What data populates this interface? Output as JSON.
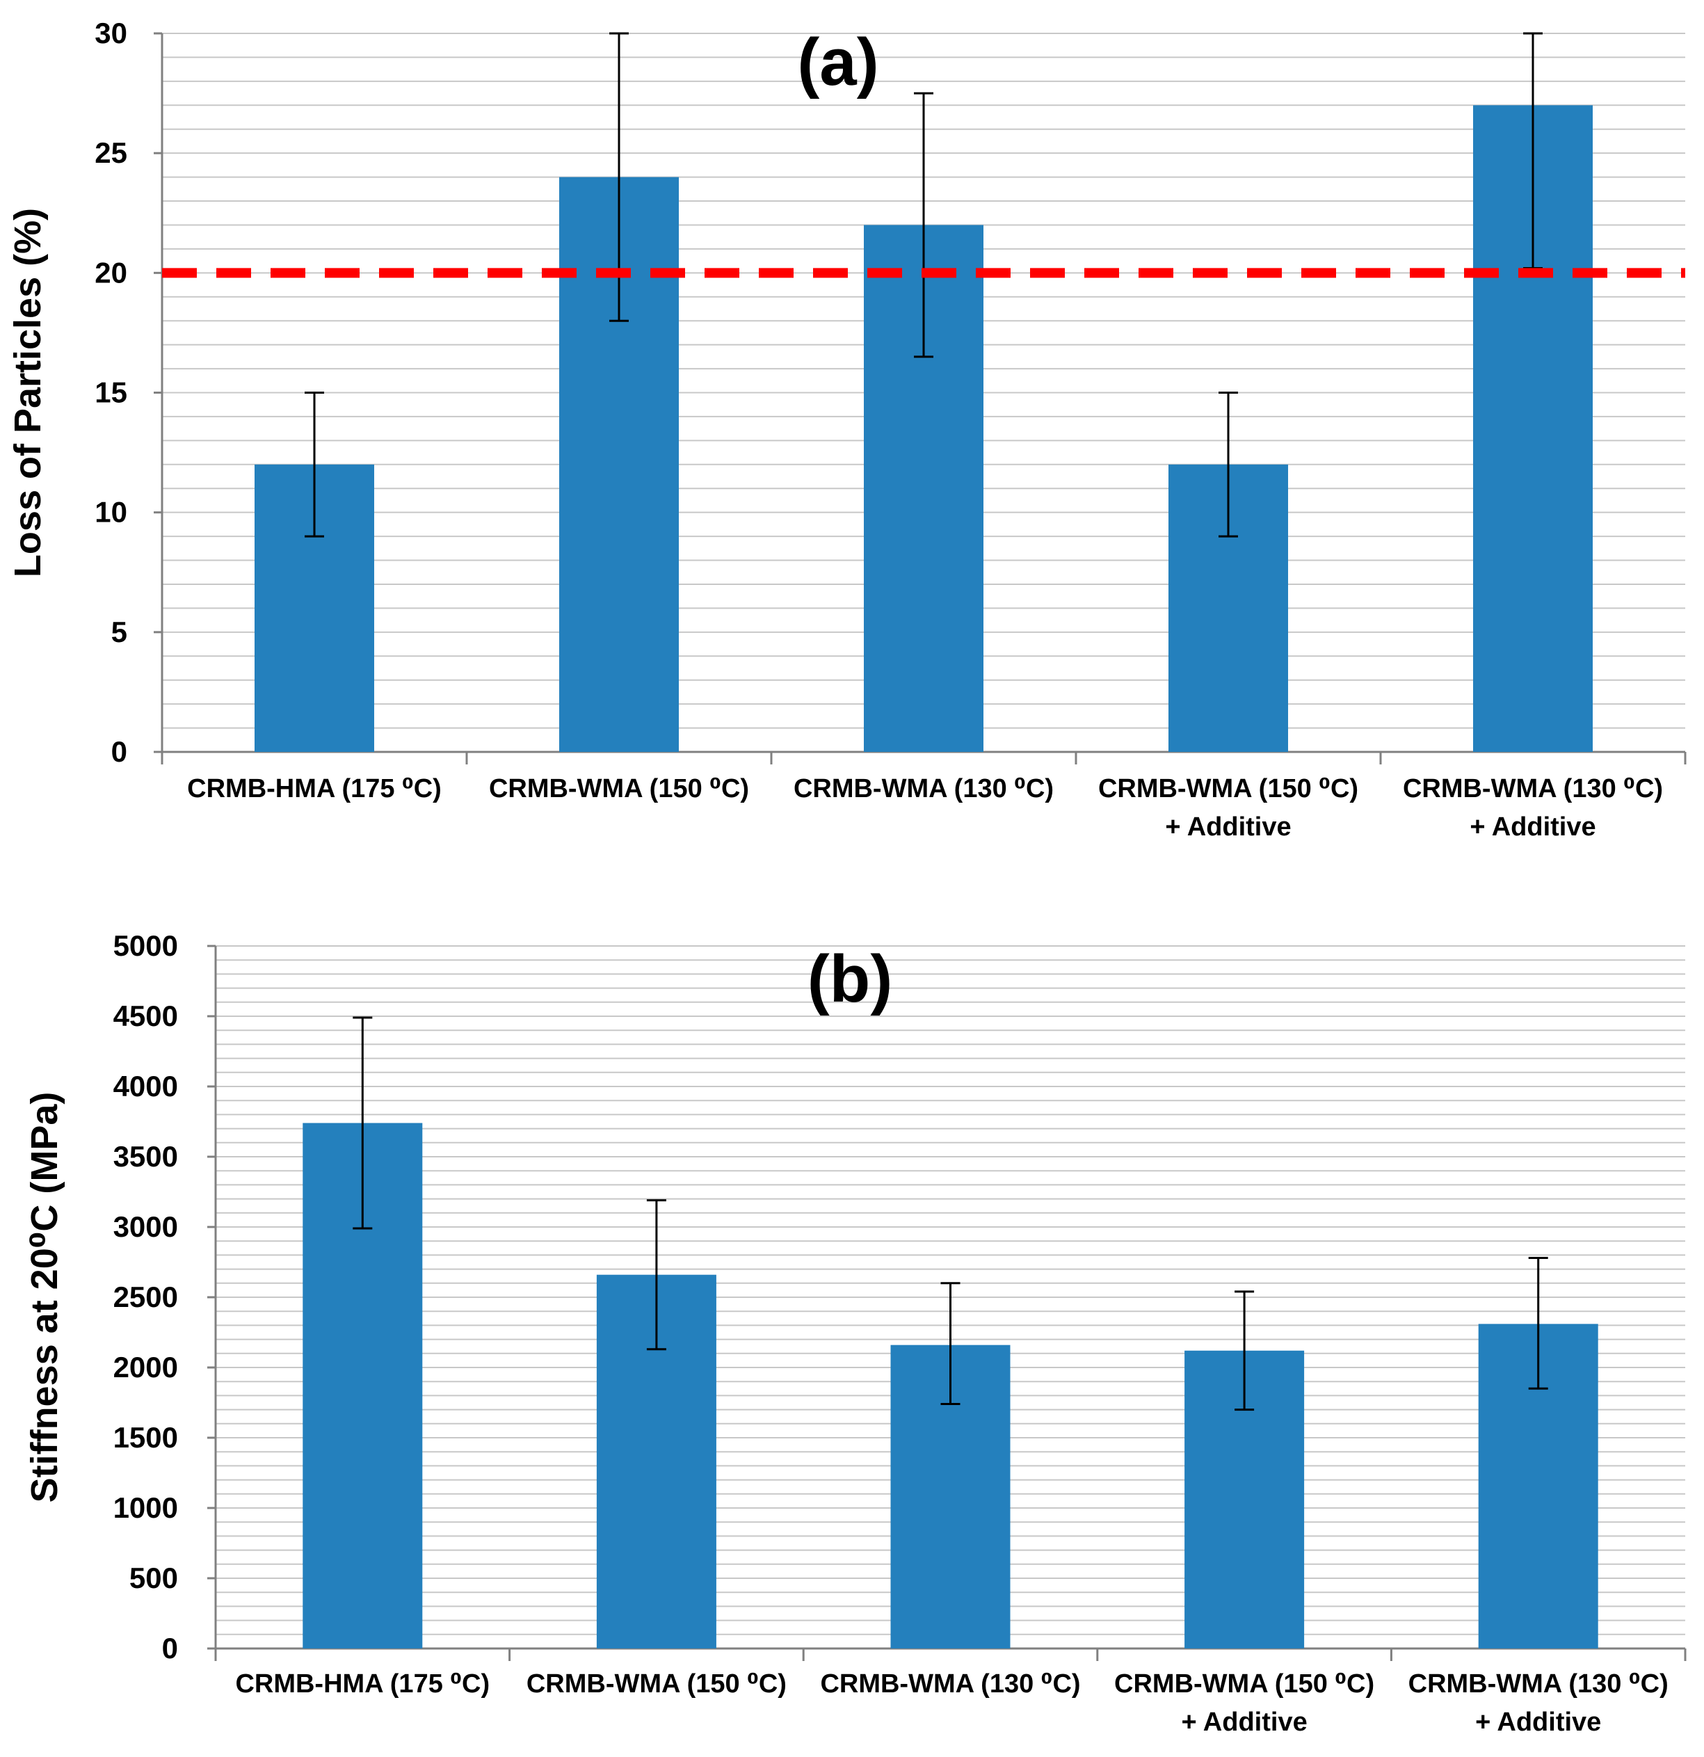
{
  "colors": {
    "bar": "#2480BD",
    "reference_line": "#FF0000",
    "grid": "#C8C8C8",
    "axis": "#808080",
    "error_bar": "#000000"
  },
  "chart_data": [
    {
      "type": "bar",
      "panel_label": "(a)",
      "ylabel": "Loss of Particles (%)",
      "ylim": [
        0,
        30
      ],
      "ytick_labels": [
        "0",
        "5",
        "10",
        "15",
        "20",
        "25",
        "30"
      ],
      "grid": true,
      "categories": [
        [
          "CRMB-HMA (175 ⁰C)"
        ],
        [
          "CRMB-WMA (150 ⁰C)"
        ],
        [
          "CRMB-WMA (130 ⁰C)"
        ],
        [
          "CRMB-WMA (150 ⁰C)",
          "+ Additive"
        ],
        [
          "CRMB-WMA (130 ⁰C)",
          "+ Additive"
        ]
      ],
      "values": [
        12,
        24,
        22,
        12,
        27
      ],
      "error_low": [
        9,
        18,
        16.5,
        9,
        20.2
      ],
      "error_high": [
        15,
        30,
        27.5,
        15,
        30
      ],
      "reference_line": 20
    },
    {
      "type": "bar",
      "panel_label": "(b)",
      "ylabel": "Stiffness at 20⁰C (MPa)",
      "ylim": [
        0,
        5000
      ],
      "ytick_labels": [
        "0",
        "500",
        "1000",
        "1500",
        "2000",
        "2500",
        "3000",
        "3500",
        "4000",
        "4500",
        "5000"
      ],
      "grid": true,
      "categories": [
        [
          "CRMB-HMA (175 ⁰C)"
        ],
        [
          "CRMB-WMA (150 ⁰C)"
        ],
        [
          "CRMB-WMA (130 ⁰C)"
        ],
        [
          "CRMB-WMA (150 ⁰C)",
          "+ Additive"
        ],
        [
          "CRMB-WMA (130 ⁰C)",
          "+ Additive"
        ]
      ],
      "values": [
        3740,
        2660,
        2160,
        2120,
        2310
      ],
      "error_low": [
        2990,
        2130,
        1740,
        1700,
        1850
      ],
      "error_high": [
        4490,
        3190,
        2600,
        2540,
        2780
      ]
    }
  ]
}
